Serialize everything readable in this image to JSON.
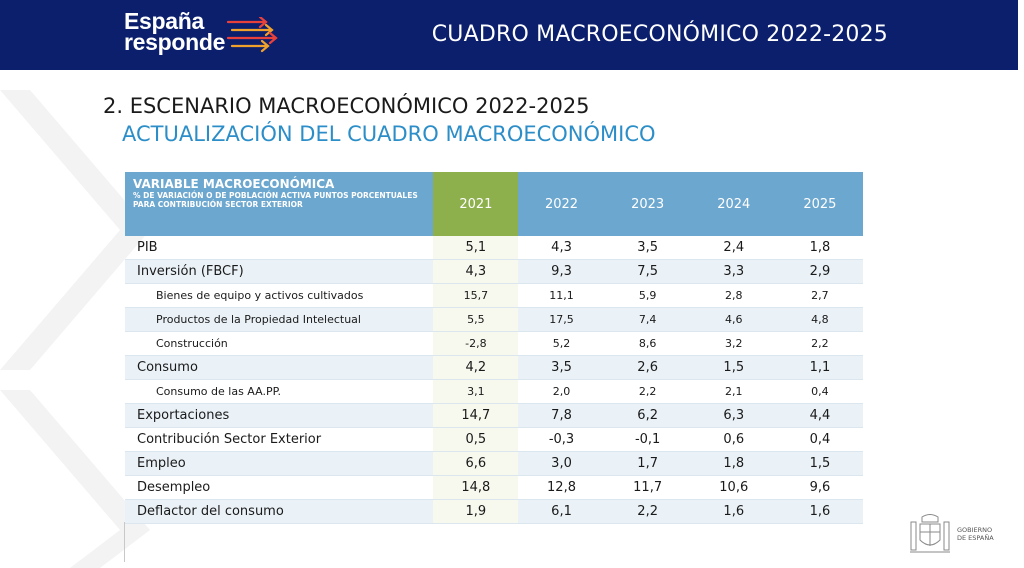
{
  "header": {
    "logo_line1": "España",
    "logo_line2": "responde",
    "title": "CUADRO MACROECONÓMICO 2022-2025"
  },
  "section": {
    "title": "2. ESCENARIO MACROECONÓMICO 2022-2025",
    "subtitle": "ACTUALIZACIÓN DEL CUADRO MACROECONÓMICO"
  },
  "table": {
    "header_main": "VARIABLE MACROECONÓMICA",
    "header_sub": "% DE VARIACIÓN O DE POBLACIÓN ACTIVA PUNTOS PORCENTUALES PARA CONTRIBUCIÓN SECTOR EXTERIOR",
    "years": [
      "2021",
      "2022",
      "2023",
      "2024",
      "2025"
    ],
    "highlight_year_color": "#8db04d",
    "header_color": "#6ca7cf",
    "rows": [
      {
        "label": "PIB",
        "values": [
          "5,1",
          "4,3",
          "3,5",
          "2,4",
          "1,8"
        ]
      },
      {
        "label": "Inversión (FBCF)",
        "values": [
          "4,3",
          "9,3",
          "7,5",
          "3,3",
          "2,9"
        ]
      },
      {
        "label": "Bienes de equipo y activos cultivados",
        "values": [
          "15,7",
          "11,1",
          "5,9",
          "2,8",
          "2,7"
        ]
      },
      {
        "label": "Productos de la Propiedad Intelectual",
        "values": [
          "5,5",
          "17,5",
          "7,4",
          "4,6",
          "4,8"
        ]
      },
      {
        "label": "Construcción",
        "values": [
          "-2,8",
          "5,2",
          "8,6",
          "3,2",
          "2,2"
        ]
      },
      {
        "label": "Consumo",
        "values": [
          "4,2",
          "3,5",
          "2,6",
          "1,5",
          "1,1"
        ]
      },
      {
        "label": "Consumo de las  AA.PP.",
        "values": [
          "3,1",
          "2,0",
          "2,2",
          "2,1",
          "0,4"
        ]
      },
      {
        "label": "Exportaciones",
        "values": [
          "14,7",
          "7,8",
          "6,2",
          "6,3",
          "4,4"
        ]
      },
      {
        "label": "Contribución Sector Exterior",
        "values": [
          "0,5",
          "-0,3",
          "-0,1",
          "0,6",
          "0,4"
        ]
      },
      {
        "label": "Empleo",
        "values": [
          "6,6",
          "3,0",
          "1,7",
          "1,8",
          "1,5"
        ]
      },
      {
        "label": "Desempleo",
        "values": [
          "14,8",
          "12,8",
          "11,7",
          "10,6",
          "9,6"
        ]
      },
      {
        "label": "Deflactor del consumo",
        "values": [
          "1,9",
          "6,1",
          "2,2",
          "1,6",
          "1,6"
        ]
      }
    ]
  },
  "footer": {
    "gov_line1": "GOBIERNO",
    "gov_line2": "DE ESPAÑA"
  }
}
